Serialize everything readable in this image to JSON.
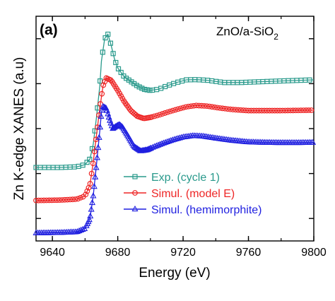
{
  "chart_data": {
    "type": "line",
    "panel_label": "(a)",
    "annotation": {
      "base": "ZnO/a-SiO",
      "subscript": "2"
    },
    "xlabel": "Energy (eV)",
    "ylabel": "Zn K-edge XANES (a.u)",
    "xlim": [
      9630,
      9800
    ],
    "ylim": [
      0,
      1
    ],
    "xticks": [
      9640,
      9680,
      9720,
      9760,
      9800
    ],
    "yticks_unlabeled": [
      0.1,
      0.3,
      0.5,
      0.7,
      0.9
    ],
    "grid": false,
    "legend_position": "lower-right",
    "series": [
      {
        "name": "Exp. (cycle 1)",
        "color": "#2a9a8c",
        "marker": "square",
        "points": [
          [
            9630,
            0.327
          ],
          [
            9645,
            0.327
          ],
          [
            9655,
            0.33
          ],
          [
            9660,
            0.34
          ],
          [
            9663,
            0.365
          ],
          [
            9665,
            0.43
          ],
          [
            9667,
            0.55
          ],
          [
            9669,
            0.69
          ],
          [
            9670,
            0.8
          ],
          [
            9672,
            0.9
          ],
          [
            9674,
            0.92
          ],
          [
            9676,
            0.87
          ],
          [
            9678,
            0.81
          ],
          [
            9680,
            0.77
          ],
          [
            9684,
            0.73
          ],
          [
            9688,
            0.71
          ],
          [
            9692,
            0.69
          ],
          [
            9696,
            0.675
          ],
          [
            9700,
            0.67
          ],
          [
            9705,
            0.675
          ],
          [
            9710,
            0.69
          ],
          [
            9716,
            0.705
          ],
          [
            9722,
            0.717
          ],
          [
            9728,
            0.718
          ],
          [
            9735,
            0.715
          ],
          [
            9745,
            0.705
          ],
          [
            9755,
            0.705
          ],
          [
            9765,
            0.708
          ],
          [
            9780,
            0.712
          ],
          [
            9800,
            0.717
          ]
        ]
      },
      {
        "name": "Simul. (model E)",
        "color": "#ee2626",
        "marker": "circle",
        "points": [
          [
            9630,
            0.18
          ],
          [
            9645,
            0.182
          ],
          [
            9655,
            0.186
          ],
          [
            9660,
            0.2
          ],
          [
            9663,
            0.25
          ],
          [
            9665,
            0.35
          ],
          [
            9667,
            0.47
          ],
          [
            9669,
            0.59
          ],
          [
            9671,
            0.69
          ],
          [
            9673,
            0.725
          ],
          [
            9676,
            0.715
          ],
          [
            9680,
            0.67
          ],
          [
            9684,
            0.62
          ],
          [
            9688,
            0.58
          ],
          [
            9692,
            0.555
          ],
          [
            9696,
            0.545
          ],
          [
            9700,
            0.55
          ],
          [
            9705,
            0.56
          ],
          [
            9710,
            0.572
          ],
          [
            9716,
            0.585
          ],
          [
            9722,
            0.597
          ],
          [
            9728,
            0.603
          ],
          [
            9735,
            0.6
          ],
          [
            9742,
            0.592
          ],
          [
            9750,
            0.585
          ],
          [
            9760,
            0.58
          ],
          [
            9770,
            0.58
          ],
          [
            9780,
            0.58
          ],
          [
            9790,
            0.581
          ],
          [
            9800,
            0.582
          ]
        ]
      },
      {
        "name": "Simul. (hemimorphite)",
        "color": "#1f1fe0",
        "marker": "triangle",
        "points": [
          [
            9630,
            0.035
          ],
          [
            9645,
            0.037
          ],
          [
            9655,
            0.04
          ],
          [
            9660,
            0.055
          ],
          [
            9663,
            0.1
          ],
          [
            9665,
            0.2
          ],
          [
            9667,
            0.34
          ],
          [
            9669,
            0.49
          ],
          [
            9670,
            0.57
          ],
          [
            9671,
            0.598
          ],
          [
            9673,
            0.59
          ],
          [
            9675,
            0.54
          ],
          [
            9677,
            0.5
          ],
          [
            9679,
            0.51
          ],
          [
            9681,
            0.518
          ],
          [
            9683,
            0.505
          ],
          [
            9686,
            0.47
          ],
          [
            9690,
            0.42
          ],
          [
            9694,
            0.4
          ],
          [
            9698,
            0.405
          ],
          [
            9702,
            0.418
          ],
          [
            9708,
            0.435
          ],
          [
            9714,
            0.45
          ],
          [
            9720,
            0.462
          ],
          [
            9726,
            0.468
          ],
          [
            9732,
            0.466
          ],
          [
            9740,
            0.457
          ],
          [
            9750,
            0.447
          ],
          [
            9760,
            0.44
          ],
          [
            9770,
            0.438
          ],
          [
            9780,
            0.437
          ],
          [
            9790,
            0.437
          ],
          [
            9800,
            0.438
          ]
        ]
      }
    ]
  }
}
